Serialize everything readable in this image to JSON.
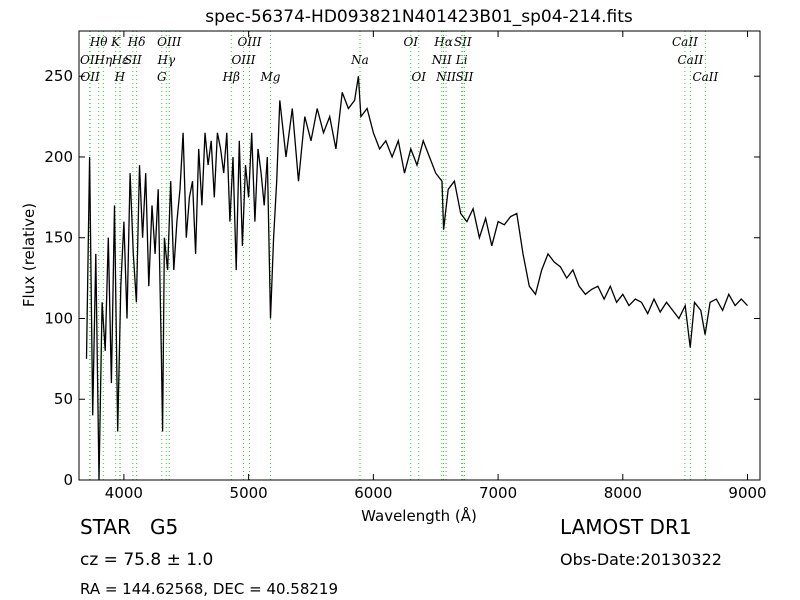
{
  "chart_data": {
    "type": "line",
    "title": "spec-56374-HD093821N401423B01_sp04-214.fits",
    "x_label": "Wavelength (Å)",
    "y_label": "Flux (relative)",
    "xlim": [
      3640,
      9100
    ],
    "ylim": [
      0,
      278
    ],
    "xticks": [
      4000,
      5000,
      6000,
      7000,
      8000,
      9000
    ],
    "yticks": [
      0,
      50,
      100,
      150,
      200,
      250
    ],
    "series": [
      {
        "name": "flux",
        "color": "#000000",
        "x": [
          3700,
          3725,
          3750,
          3775,
          3800,
          3825,
          3850,
          3875,
          3900,
          3925,
          3950,
          3975,
          4000,
          4025,
          4050,
          4075,
          4100,
          4125,
          4150,
          4175,
          4200,
          4225,
          4250,
          4275,
          4300,
          4310,
          4325,
          4350,
          4375,
          4400,
          4425,
          4450,
          4475,
          4500,
          4525,
          4550,
          4575,
          4600,
          4625,
          4650,
          4675,
          4700,
          4725,
          4750,
          4775,
          4800,
          4825,
          4850,
          4875,
          4900,
          4925,
          4950,
          4975,
          5000,
          5025,
          5050,
          5075,
          5100,
          5125,
          5150,
          5175,
          5200,
          5225,
          5250,
          5300,
          5350,
          5400,
          5450,
          5500,
          5550,
          5600,
          5650,
          5700,
          5750,
          5800,
          5850,
          5880,
          5900,
          5950,
          6000,
          6050,
          6100,
          6150,
          6200,
          6250,
          6300,
          6350,
          6400,
          6450,
          6500,
          6550,
          6563,
          6600,
          6650,
          6700,
          6750,
          6800,
          6850,
          6900,
          6950,
          7000,
          7050,
          7100,
          7150,
          7200,
          7250,
          7300,
          7350,
          7400,
          7450,
          7500,
          7550,
          7600,
          7650,
          7700,
          7750,
          7800,
          7850,
          7900,
          7950,
          8000,
          8050,
          8100,
          8150,
          8200,
          8250,
          8300,
          8350,
          8400,
          8450,
          8500,
          8540,
          8575,
          8625,
          8660,
          8700,
          8750,
          8800,
          8850,
          8900,
          8950,
          9000
        ],
        "values": [
          75,
          200,
          40,
          140,
          0,
          110,
          80,
          150,
          60,
          170,
          30,
          120,
          160,
          100,
          190,
          140,
          110,
          195,
          150,
          190,
          120,
          170,
          140,
          180,
          80,
          30,
          150,
          130,
          185,
          130,
          160,
          180,
          215,
          150,
          175,
          185,
          140,
          205,
          170,
          215,
          195,
          210,
          175,
          215,
          205,
          190,
          215,
          160,
          200,
          130,
          210,
          145,
          195,
          175,
          215,
          160,
          205,
          190,
          170,
          200,
          100,
          150,
          185,
          235,
          200,
          230,
          185,
          225,
          210,
          230,
          215,
          225,
          205,
          240,
          230,
          235,
          250,
          225,
          230,
          215,
          205,
          210,
          200,
          210,
          190,
          205,
          195,
          210,
          200,
          190,
          185,
          155,
          180,
          185,
          165,
          160,
          168,
          150,
          162,
          145,
          160,
          158,
          163,
          165,
          140,
          120,
          115,
          130,
          140,
          135,
          132,
          125,
          130,
          120,
          115,
          118,
          120,
          112,
          120,
          110,
          115,
          108,
          112,
          110,
          103,
          112,
          104,
          110,
          105,
          100,
          108,
          82,
          110,
          105,
          90,
          110,
          112,
          105,
          115,
          108,
          112,
          108
        ]
      }
    ],
    "line_markers": [
      {
        "label": "Hθ",
        "wavelength": 3798
      },
      {
        "label": "K",
        "wavelength": 3934
      },
      {
        "label": "Hδ",
        "wavelength": 4102
      },
      {
        "label": "OIII",
        "wavelength": 4363
      },
      {
        "label": "OIII",
        "wavelength": 5007
      },
      {
        "label": "OI",
        "wavelength": 6300
      },
      {
        "label": "Hα",
        "wavelength": 6563
      },
      {
        "label": "SII",
        "wavelength": 6717
      },
      {
        "label": "CaII",
        "wavelength": 8498
      },
      {
        "label": "OII",
        "wavelength": 3726
      },
      {
        "label": "Hη",
        "wavelength": 3835
      },
      {
        "label": "Hε",
        "wavelength": 3970
      },
      {
        "label": "SII",
        "wavelength": 4072
      },
      {
        "label": "Hγ",
        "wavelength": 4340
      },
      {
        "label": "OIII",
        "wavelength": 4959
      },
      {
        "label": "Na",
        "wavelength": 5893
      },
      {
        "label": "NII",
        "wavelength": 6548
      },
      {
        "label": "Li",
        "wavelength": 6708
      },
      {
        "label": "CaII",
        "wavelength": 8542
      },
      {
        "label": "OII",
        "wavelength": 3729
      },
      {
        "label": "H",
        "wavelength": 3968
      },
      {
        "label": "G",
        "wavelength": 4304
      },
      {
        "label": "Hβ",
        "wavelength": 4861
      },
      {
        "label": "Mg",
        "wavelength": 5175
      },
      {
        "label": "OI",
        "wavelength": 6364
      },
      {
        "label": "NII",
        "wavelength": 6583
      },
      {
        "label": "SII",
        "wavelength": 6731
      },
      {
        "label": "CaII",
        "wavelength": 8662
      }
    ],
    "annotations": {
      "class": "STAR   G5",
      "cz": "cz = 75.8 ± 1.0",
      "coords": "RA = 144.62568, DEC = 40.58219",
      "survey": "LAMOST DR1",
      "date": "Obs-Date:20130322"
    }
  }
}
